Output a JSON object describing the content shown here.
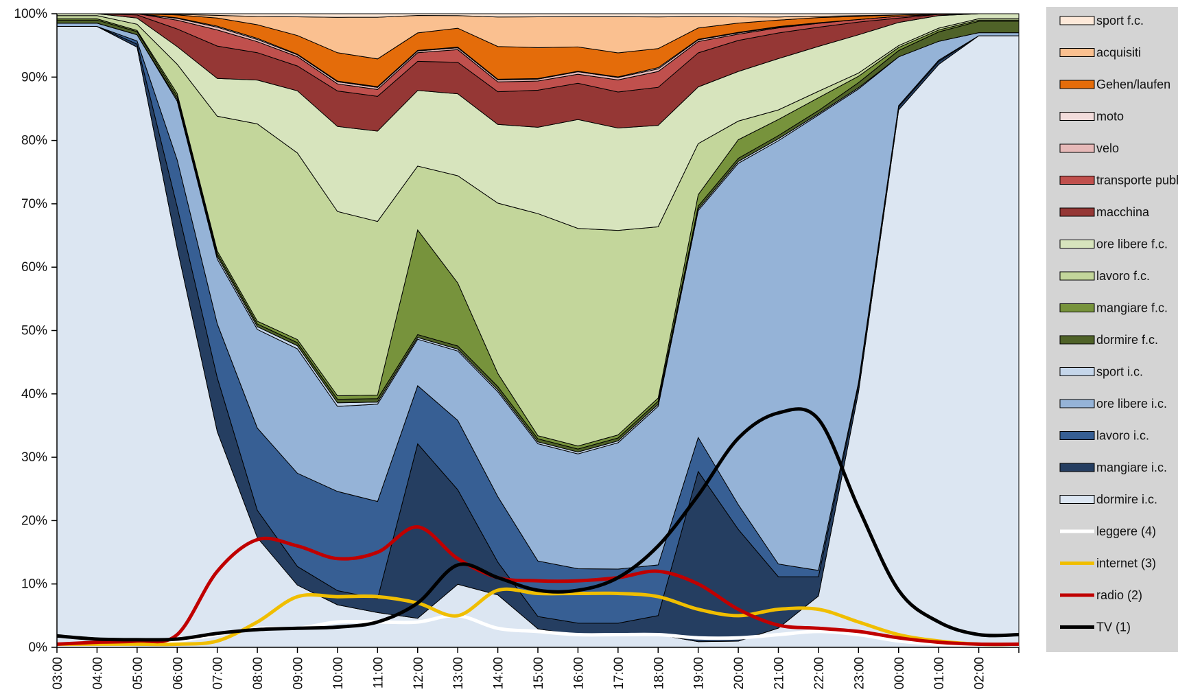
{
  "chart_data": {
    "type": "area",
    "stacked_percent": true,
    "title": "",
    "xlabel": "",
    "ylabel": "",
    "ylim": [
      0,
      100
    ],
    "y_tick_labels": [
      "0%",
      "10%",
      "20%",
      "30%",
      "40%",
      "50%",
      "60%",
      "70%",
      "80%",
      "90%",
      "100%"
    ],
    "x": [
      "03:00",
      "04:00",
      "05:00",
      "06:00",
      "07:00",
      "08:00",
      "09:00",
      "10:00",
      "11:00",
      "12:00",
      "13:00",
      "14:00",
      "15:00",
      "16:00",
      "17:00",
      "18:00",
      "19:00",
      "20:00",
      "21:00",
      "22:00",
      "23:00",
      "00:00",
      "01:00",
      "02:00"
    ],
    "grid": false,
    "legend_position": "right",
    "area_series": [
      {
        "name": "dormire i.c.",
        "color": "#dce6f2",
        "values": [
          98,
          98,
          97,
          68,
          40,
          20,
          10,
          6,
          5,
          5,
          10,
          8,
          3,
          2,
          2,
          2,
          1,
          1,
          3,
          8,
          40,
          86,
          93,
          97
        ]
      },
      {
        "name": "mangiare i.c.",
        "color": "#253e61",
        "values": [
          0,
          0,
          0.5,
          7,
          10,
          5,
          3,
          2,
          2,
          30,
          15,
          5,
          2,
          2,
          2,
          3,
          30,
          18,
          8,
          3,
          1,
          0.5,
          0.5,
          0
        ]
      },
      {
        "name": "lavoro i.c.",
        "color": "#375f94",
        "values": [
          0,
          0,
          0.5,
          8,
          10,
          15,
          15,
          14,
          14,
          10,
          11,
          10,
          9,
          9,
          9,
          8,
          6,
          4,
          2,
          1,
          0.5,
          0.2,
          0.2,
          0
        ]
      },
      {
        "name": "ore libere i.c.",
        "color": "#95b3d7",
        "values": [
          0.5,
          0.5,
          1,
          10,
          12,
          18,
          20,
          12,
          14,
          8,
          11,
          16,
          19,
          19,
          21,
          25,
          40,
          55,
          66,
          71,
          46,
          7.8,
          3,
          0.5
        ]
      },
      {
        "name": "sport i.c.",
        "color": "#c5d6ea",
        "values": [
          0,
          0,
          0,
          0.3,
          0.5,
          0.5,
          0.5,
          0.5,
          0.3,
          0.3,
          0.3,
          0.3,
          0.3,
          0.3,
          0.3,
          0.3,
          0.3,
          0.3,
          0.3,
          0.2,
          0.2,
          0,
          0,
          0
        ]
      },
      {
        "name": "dormire f.c.",
        "color": "#4f6228",
        "values": [
          0.5,
          0.5,
          0.5,
          0.5,
          0.5,
          0.5,
          0.5,
          0.5,
          0.5,
          0.5,
          0.5,
          0.5,
          0.5,
          0.5,
          0.5,
          0.5,
          0.5,
          0.5,
          0.5,
          0.5,
          0.8,
          1,
          1.5,
          1.8
        ]
      },
      {
        "name": "mangiare f.c.",
        "color": "#77933c",
        "values": [
          0.2,
          0.2,
          0.2,
          0.5,
          0.5,
          0.5,
          0.5,
          0.5,
          0.5,
          18,
          10,
          2,
          0.5,
          0.5,
          0.5,
          0.5,
          2,
          3,
          2.5,
          2,
          1,
          0.5,
          0.3,
          0.2
        ]
      },
      {
        "name": "lavoro f.c.",
        "color": "#c3d69b",
        "values": [
          0.5,
          0.5,
          1,
          5,
          25,
          36,
          30,
          26,
          25,
          11,
          17,
          26,
          36,
          36,
          34,
          27,
          9,
          3,
          1.5,
          1,
          0.5,
          0.3,
          0.3,
          0.2
        ]
      },
      {
        "name": "ore libere f.c.",
        "color": "#d7e4bd",
        "values": [
          0.3,
          0.3,
          1,
          3,
          7,
          8,
          10,
          12,
          13,
          13,
          13,
          12,
          14,
          18,
          17,
          16,
          10,
          8,
          8,
          7,
          6,
          3.7,
          2,
          0.8
        ]
      },
      {
        "name": "macchina",
        "color": "#953735",
        "values": [
          0,
          0,
          0.5,
          3,
          6,
          5,
          4,
          5,
          5,
          5,
          5,
          5,
          6,
          6,
          6,
          6,
          6,
          5,
          4,
          3,
          2,
          0.7,
          0.2,
          0
        ]
      },
      {
        "name": "transporte publici",
        "color": "#c0504d",
        "values": [
          0,
          0,
          0.2,
          1.5,
          3,
          2,
          1.5,
          1,
          1,
          1.5,
          2,
          1.5,
          1.5,
          1.5,
          2,
          2.5,
          2,
          1,
          0.8,
          0.6,
          0.4,
          0.3,
          0,
          0
        ]
      },
      {
        "name": "velo",
        "color": "#e6b9b8",
        "values": [
          0,
          0,
          0,
          0.3,
          0.5,
          0.4,
          0.3,
          0.3,
          0.3,
          0.3,
          0.3,
          0.3,
          0.3,
          0.4,
          0.4,
          0.4,
          0.3,
          0.2,
          0.1,
          0.1,
          0,
          0,
          0,
          0
        ]
      },
      {
        "name": "moto",
        "color": "#f2dcdb",
        "values": [
          0,
          0,
          0,
          0.1,
          0.2,
          0.2,
          0.1,
          0.1,
          0.1,
          0.1,
          0.1,
          0.1,
          0.1,
          0.1,
          0.1,
          0.2,
          0.1,
          0.1,
          0.1,
          0,
          0,
          0,
          0,
          0
        ]
      },
      {
        "name": "Gehen/laufen",
        "color": "#e46c0a",
        "values": [
          0,
          0,
          0,
          0.5,
          1.5,
          2.5,
          3,
          4,
          4,
          3,
          3,
          5,
          5,
          4,
          4,
          3,
          2,
          1.5,
          1,
          0.8,
          0.5,
          0.2,
          0.1,
          0
        ]
      },
      {
        "name": "acquisiti",
        "color": "#fac090",
        "values": [
          0,
          0,
          0,
          0.1,
          0.5,
          1.5,
          3,
          5,
          6,
          3,
          2,
          4.5,
          5,
          5,
          6,
          5,
          2,
          1,
          0.5,
          0.2,
          0.1,
          0,
          0,
          0
        ]
      },
      {
        "name": "sport f.c.",
        "color": "#fde9d9",
        "values": [
          0,
          0,
          0,
          0.1,
          0.3,
          0.5,
          0.5,
          0.5,
          0.5,
          0.3,
          0.3,
          0.5,
          0.5,
          0.5,
          0.5,
          0.5,
          0.5,
          0.5,
          0.5,
          0.4,
          0.3,
          0.2,
          0,
          0
        ]
      }
    ],
    "line_series": [
      {
        "name": "leggere (4)",
        "color": "#ffffff",
        "values": [
          0.3,
          0.3,
          0.5,
          1,
          2,
          3,
          3,
          4,
          4,
          4,
          5,
          3,
          2.5,
          2,
          2,
          2,
          1.5,
          1.5,
          2,
          2.5,
          2,
          1,
          0.5,
          0.3
        ]
      },
      {
        "name": "internet (3)",
        "color": "#f0be00",
        "values": [
          0.5,
          0.5,
          0.5,
          0.5,
          1,
          4,
          8,
          8,
          8,
          7,
          5,
          9,
          8.5,
          8.5,
          8.5,
          8,
          6,
          5,
          6,
          6,
          4,
          2,
          1,
          0.5
        ]
      },
      {
        "name": "radio (2)",
        "color": "#c00000",
        "values": [
          0.5,
          0.8,
          1,
          2,
          12,
          17,
          16,
          14,
          15,
          19,
          14,
          11,
          10.5,
          10.5,
          11,
          12,
          10,
          6,
          3.5,
          3,
          2.5,
          1.5,
          0.8,
          0.5
        ]
      },
      {
        "name": "TV (1)",
        "color": "#000000",
        "values": [
          1.8,
          1.3,
          1.2,
          1.3,
          2.2,
          2.8,
          3,
          3.2,
          4,
          7,
          13,
          11,
          9,
          9,
          11,
          16,
          24,
          33,
          37,
          36,
          22,
          9,
          4,
          2
        ]
      }
    ]
  }
}
